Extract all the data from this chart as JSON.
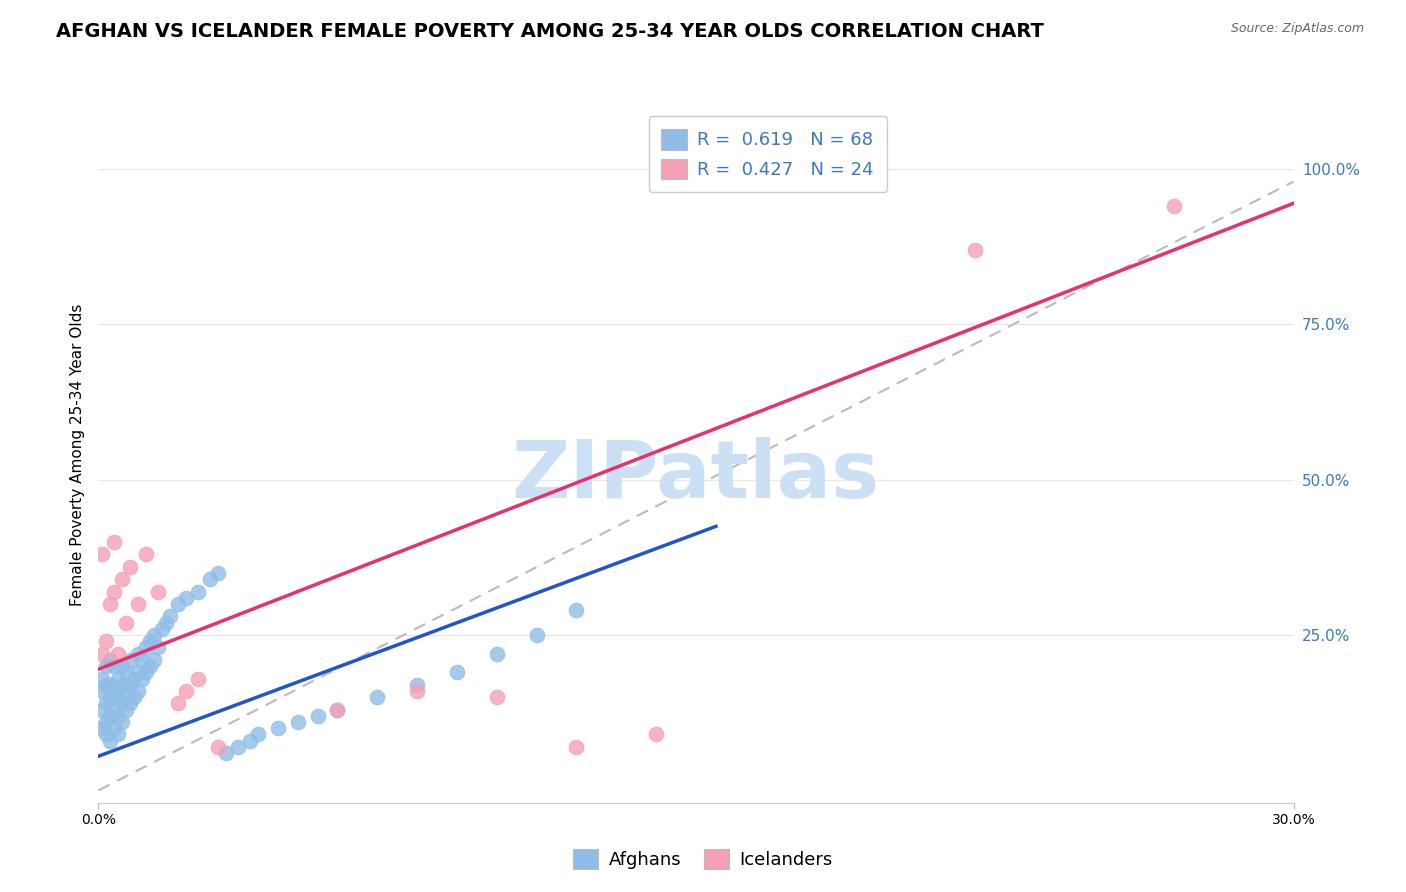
{
  "title": "AFGHAN VS ICELANDER FEMALE POVERTY AMONG 25-34 YEAR OLDS CORRELATION CHART",
  "source": "Source: ZipAtlas.com",
  "ylabel": "Female Poverty Among 25-34 Year Olds",
  "y_tick_labels": [
    "100.0%",
    "75.0%",
    "50.0%",
    "25.0%"
  ],
  "y_tick_values": [
    1.0,
    0.75,
    0.5,
    0.25
  ],
  "x_range": [
    0.0,
    0.3
  ],
  "y_range": [
    -0.02,
    1.1
  ],
  "x_ticks": [
    0.0,
    0.3
  ],
  "x_tick_labels": [
    "0.0%",
    "30.0%"
  ],
  "afghan_color": "#90bde8",
  "icelander_color": "#f4a0b5",
  "afghan_line_color": "#2255cc",
  "icelander_line_color": "#e83070",
  "ref_line_color": "#bbbbbb",
  "watermark": "ZIPatlas",
  "watermark_color": "#cce0f5",
  "background_color": "#ffffff",
  "legend_R_afghan": "0.619",
  "legend_N_afghan": "68",
  "legend_R_icelander": "0.427",
  "legend_N_icelander": "24",
  "legend_label_afghan": "Afghans",
  "legend_label_icelander": "Icelanders",
  "afghan_x": [
    0.001,
    0.001,
    0.001,
    0.001,
    0.002,
    0.002,
    0.002,
    0.002,
    0.002,
    0.003,
    0.003,
    0.003,
    0.003,
    0.003,
    0.004,
    0.004,
    0.004,
    0.004,
    0.005,
    0.005,
    0.005,
    0.005,
    0.006,
    0.006,
    0.006,
    0.006,
    0.007,
    0.007,
    0.007,
    0.008,
    0.008,
    0.008,
    0.009,
    0.009,
    0.01,
    0.01,
    0.01,
    0.011,
    0.011,
    0.012,
    0.012,
    0.013,
    0.013,
    0.014,
    0.014,
    0.015,
    0.016,
    0.017,
    0.018,
    0.02,
    0.022,
    0.025,
    0.028,
    0.03,
    0.032,
    0.035,
    0.038,
    0.04,
    0.045,
    0.05,
    0.055,
    0.06,
    0.07,
    0.08,
    0.09,
    0.1,
    0.11,
    0.12
  ],
  "afghan_y": [
    0.1,
    0.13,
    0.16,
    0.18,
    0.09,
    0.11,
    0.14,
    0.17,
    0.2,
    0.08,
    0.12,
    0.15,
    0.17,
    0.21,
    0.1,
    0.13,
    0.16,
    0.2,
    0.09,
    0.12,
    0.15,
    0.18,
    0.11,
    0.14,
    0.17,
    0.2,
    0.13,
    0.16,
    0.19,
    0.14,
    0.17,
    0.21,
    0.15,
    0.18,
    0.16,
    0.19,
    0.22,
    0.18,
    0.21,
    0.19,
    0.23,
    0.2,
    0.24,
    0.21,
    0.25,
    0.23,
    0.26,
    0.27,
    0.28,
    0.3,
    0.31,
    0.32,
    0.34,
    0.35,
    0.06,
    0.07,
    0.08,
    0.09,
    0.1,
    0.11,
    0.12,
    0.13,
    0.15,
    0.17,
    0.19,
    0.22,
    0.25,
    0.29
  ],
  "icelander_x": [
    0.001,
    0.001,
    0.002,
    0.003,
    0.004,
    0.004,
    0.005,
    0.006,
    0.007,
    0.008,
    0.01,
    0.012,
    0.015,
    0.02,
    0.022,
    0.025,
    0.03,
    0.06,
    0.08,
    0.1,
    0.12,
    0.14,
    0.22,
    0.27
  ],
  "icelander_y": [
    0.22,
    0.38,
    0.24,
    0.3,
    0.32,
    0.4,
    0.22,
    0.34,
    0.27,
    0.36,
    0.3,
    0.38,
    0.32,
    0.14,
    0.16,
    0.18,
    0.07,
    0.13,
    0.16,
    0.15,
    0.07,
    0.09,
    0.87,
    0.94
  ],
  "afghan_line_x": [
    0.0,
    0.155
  ],
  "afghan_line_y": [
    0.055,
    0.425
  ],
  "icelander_line_x": [
    0.0,
    0.3
  ],
  "icelander_line_y": [
    0.195,
    0.945
  ],
  "ref_line_x": [
    0.0,
    0.3
  ],
  "ref_line_y": [
    0.0,
    0.98
  ],
  "title_fontsize": 14,
  "axis_label_fontsize": 11,
  "tick_fontsize": 10,
  "legend_fontsize": 13,
  "right_tick_color": "#3a7abf",
  "grid_color": "#e8e8e8"
}
